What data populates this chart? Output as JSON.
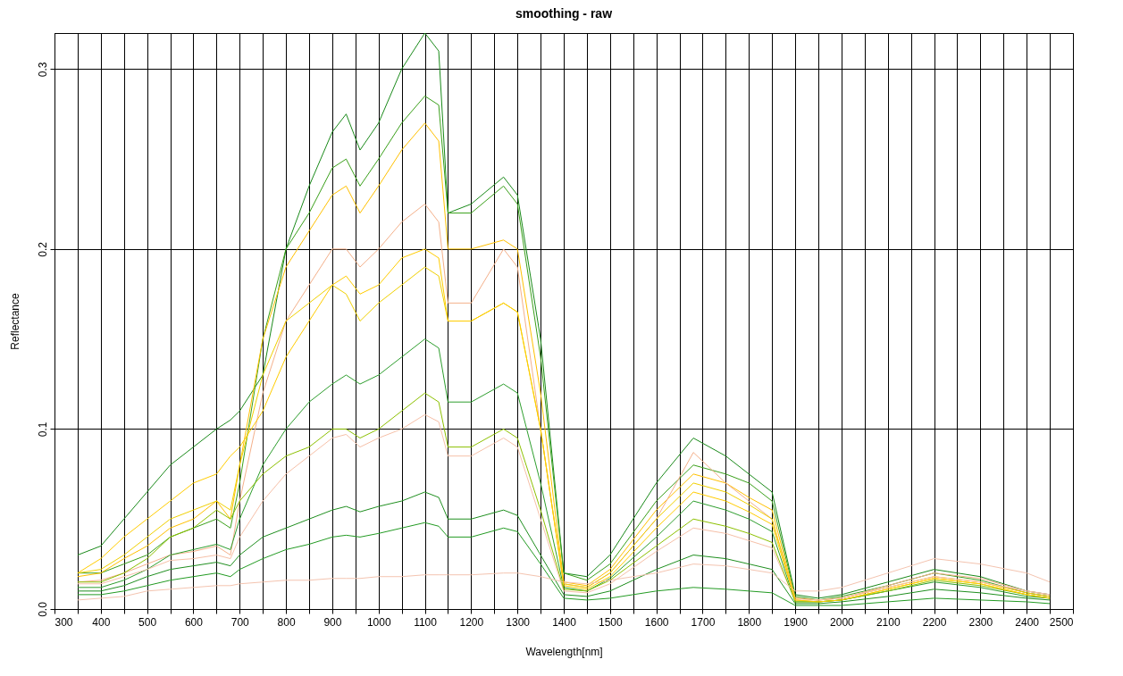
{
  "chart_data": {
    "type": "line",
    "title": "smoothing -  raw",
    "xlabel": "Wavelength[nm]",
    "ylabel": "Reflectance",
    "grid": true,
    "legend": false,
    "marker": "none",
    "line_style": "solid",
    "xlim": [
      300,
      2500
    ],
    "ylim": [
      0,
      0.32
    ],
    "xticks": [
      300,
      {
        "value": 350,
        "label": null
      },
      400,
      {
        "value": 450,
        "label": null
      },
      500,
      {
        "value": 550,
        "label": null
      },
      600,
      {
        "value": 650,
        "label": null
      },
      700,
      {
        "value": 750,
        "label": null
      },
      800,
      {
        "value": 850,
        "label": null
      },
      900,
      {
        "value": 950,
        "label": null
      },
      1000,
      {
        "value": 1050,
        "label": null
      },
      1100,
      {
        "value": 1150,
        "label": null
      },
      1200,
      {
        "value": 1250,
        "label": null
      },
      1300,
      {
        "value": 1350,
        "label": null
      },
      1400,
      {
        "value": 1450,
        "label": null
      },
      1500,
      {
        "value": 1550,
        "label": null
      },
      1600,
      {
        "value": 1650,
        "label": null
      },
      1700,
      {
        "value": 1750,
        "label": null
      },
      1800,
      {
        "value": 1850,
        "label": null
      },
      1900,
      {
        "value": 1950,
        "label": null
      },
      2000,
      {
        "value": 2050,
        "label": null
      },
      2100,
      {
        "value": 2150,
        "label": null
      },
      2200,
      {
        "value": 2250,
        "label": null
      },
      2300,
      {
        "value": 2350,
        "label": null
      },
      2400,
      {
        "value": 2450,
        "label": null
      },
      2500
    ],
    "yticks": [
      {
        "value": 0,
        "label": "0.0"
      },
      0.1,
      0.2,
      0.3
    ],
    "x": [
      350,
      400,
      450,
      500,
      550,
      600,
      650,
      680,
      700,
      750,
      800,
      850,
      900,
      930,
      960,
      1000,
      1050,
      1100,
      1130,
      1150,
      1200,
      1270,
      1300,
      1350,
      1400,
      1450,
      1500,
      1600,
      1680,
      1750,
      1800,
      1850,
      1900,
      1950,
      2000,
      2100,
      2200,
      2300,
      2400,
      2450
    ],
    "series": [
      {
        "color": "#1a8a1a",
        "values": [
          0.03,
          0.035,
          0.05,
          0.065,
          0.08,
          0.09,
          0.1,
          0.105,
          0.11,
          0.13,
          0.2,
          0.235,
          0.265,
          0.275,
          0.255,
          0.27,
          0.3,
          0.32,
          0.31,
          0.22,
          0.225,
          0.24,
          0.23,
          0.15,
          0.02,
          0.018,
          0.03,
          0.07,
          0.095,
          0.085,
          0.075,
          0.065,
          0.008,
          0.006,
          0.008,
          0.015,
          0.022,
          0.018,
          0.01,
          0.008
        ]
      },
      {
        "color": "#3aa01a",
        "values": [
          0.02,
          0.02,
          0.025,
          0.03,
          0.04,
          0.045,
          0.05,
          0.045,
          0.07,
          0.15,
          0.2,
          0.22,
          0.245,
          0.25,
          0.235,
          0.25,
          0.27,
          0.285,
          0.28,
          0.22,
          0.22,
          0.235,
          0.225,
          0.14,
          0.02,
          0.016,
          0.025,
          0.06,
          0.08,
          0.075,
          0.07,
          0.06,
          0.007,
          0.005,
          0.007,
          0.013,
          0.02,
          0.016,
          0.009,
          0.007
        ]
      },
      {
        "color": "#ffc000",
        "values": [
          0.018,
          0.02,
          0.028,
          0.035,
          0.045,
          0.05,
          0.06,
          0.05,
          0.08,
          0.15,
          0.19,
          0.21,
          0.23,
          0.235,
          0.22,
          0.235,
          0.255,
          0.27,
          0.26,
          0.2,
          0.2,
          0.205,
          0.2,
          0.12,
          0.015,
          0.013,
          0.022,
          0.055,
          0.075,
          0.07,
          0.062,
          0.055,
          0.006,
          0.005,
          0.006,
          0.012,
          0.018,
          0.015,
          0.009,
          0.007
        ]
      },
      {
        "color": "#f4b08a",
        "values": [
          0.015,
          0.016,
          0.02,
          0.025,
          0.03,
          0.032,
          0.035,
          0.03,
          0.06,
          0.12,
          0.16,
          0.18,
          0.2,
          0.2,
          0.19,
          0.2,
          0.215,
          0.225,
          0.215,
          0.17,
          0.17,
          0.2,
          0.19,
          0.1,
          0.014,
          0.012,
          0.02,
          0.05,
          0.087,
          0.07,
          0.06,
          0.05,
          0.006,
          0.005,
          0.006,
          0.013,
          0.02,
          0.017,
          0.01,
          0.008
        ]
      },
      {
        "color": "#f0d000",
        "values": [
          0.02,
          0.022,
          0.03,
          0.04,
          0.05,
          0.055,
          0.06,
          0.055,
          0.08,
          0.13,
          0.16,
          0.17,
          0.18,
          0.175,
          0.16,
          0.17,
          0.18,
          0.19,
          0.185,
          0.16,
          0.16,
          0.17,
          0.165,
          0.1,
          0.014,
          0.012,
          0.02,
          0.05,
          0.07,
          0.065,
          0.058,
          0.05,
          0.005,
          0.004,
          0.005,
          0.011,
          0.017,
          0.014,
          0.008,
          0.006
        ]
      },
      {
        "color": "#2e9e2e",
        "values": [
          0.012,
          0.012,
          0.016,
          0.022,
          0.03,
          0.033,
          0.036,
          0.033,
          0.05,
          0.08,
          0.1,
          0.115,
          0.125,
          0.13,
          0.125,
          0.13,
          0.14,
          0.15,
          0.145,
          0.115,
          0.115,
          0.125,
          0.12,
          0.07,
          0.012,
          0.01,
          0.017,
          0.04,
          0.06,
          0.055,
          0.05,
          0.043,
          0.004,
          0.004,
          0.005,
          0.01,
          0.015,
          0.012,
          0.007,
          0.006
        ]
      },
      {
        "color": "#f6c0a8",
        "values": [
          0.014,
          0.014,
          0.018,
          0.022,
          0.027,
          0.028,
          0.03,
          0.028,
          0.04,
          0.06,
          0.075,
          0.085,
          0.095,
          0.097,
          0.09,
          0.095,
          0.1,
          0.108,
          0.104,
          0.085,
          0.085,
          0.095,
          0.09,
          0.05,
          0.01,
          0.009,
          0.014,
          0.032,
          0.045,
          0.042,
          0.038,
          0.034,
          0.005,
          0.005,
          0.006,
          0.012,
          0.018,
          0.015,
          0.01,
          0.008
        ]
      },
      {
        "color": "#8cc000",
        "values": [
          0.015,
          0.015,
          0.02,
          0.028,
          0.04,
          0.045,
          0.055,
          0.05,
          0.06,
          0.075,
          0.085,
          0.09,
          0.1,
          0.1,
          0.095,
          0.1,
          0.11,
          0.12,
          0.115,
          0.09,
          0.09,
          0.1,
          0.095,
          0.055,
          0.011,
          0.01,
          0.016,
          0.035,
          0.05,
          0.046,
          0.042,
          0.037,
          0.004,
          0.004,
          0.005,
          0.01,
          0.016,
          0.013,
          0.008,
          0.006
        ]
      },
      {
        "color": "#1f8f1f",
        "values": [
          0.01,
          0.01,
          0.013,
          0.018,
          0.022,
          0.024,
          0.026,
          0.024,
          0.03,
          0.04,
          0.045,
          0.05,
          0.055,
          0.057,
          0.054,
          0.057,
          0.06,
          0.065,
          0.062,
          0.05,
          0.05,
          0.055,
          0.052,
          0.03,
          0.008,
          0.007,
          0.01,
          0.022,
          0.03,
          0.028,
          0.025,
          0.022,
          0.003,
          0.003,
          0.004,
          0.007,
          0.011,
          0.009,
          0.006,
          0.005
        ]
      },
      {
        "color": "#239b23",
        "values": [
          0.008,
          0.008,
          0.01,
          0.013,
          0.016,
          0.018,
          0.02,
          0.018,
          0.022,
          0.028,
          0.033,
          0.036,
          0.04,
          0.041,
          0.04,
          0.042,
          0.045,
          0.048,
          0.046,
          0.04,
          0.04,
          0.045,
          0.043,
          0.025,
          0.006,
          0.005,
          0.006,
          0.01,
          0.012,
          0.011,
          0.01,
          0.009,
          0.002,
          0.002,
          0.002,
          0.004,
          0.006,
          0.005,
          0.004,
          0.003
        ]
      },
      {
        "color": "#f4c4b0",
        "values": [
          0.005,
          0.006,
          0.007,
          0.01,
          0.011,
          0.012,
          0.013,
          0.013,
          0.014,
          0.015,
          0.016,
          0.016,
          0.017,
          0.017,
          0.017,
          0.018,
          0.018,
          0.019,
          0.019,
          0.019,
          0.019,
          0.02,
          0.02,
          0.018,
          0.015,
          0.014,
          0.016,
          0.02,
          0.025,
          0.024,
          0.022,
          0.02,
          0.01,
          0.01,
          0.012,
          0.02,
          0.028,
          0.025,
          0.02,
          0.015
        ]
      },
      {
        "color": "#ffcc00",
        "values": [
          0.02,
          0.028,
          0.04,
          0.05,
          0.06,
          0.07,
          0.075,
          0.085,
          0.09,
          0.11,
          0.14,
          0.16,
          0.18,
          0.185,
          0.175,
          0.18,
          0.195,
          0.2,
          0.195,
          0.16,
          0.16,
          0.17,
          0.165,
          0.1,
          0.013,
          0.011,
          0.018,
          0.045,
          0.065,
          0.06,
          0.054,
          0.047,
          0.005,
          0.004,
          0.005,
          0.011,
          0.017,
          0.014,
          0.008,
          0.006
        ]
      }
    ]
  }
}
